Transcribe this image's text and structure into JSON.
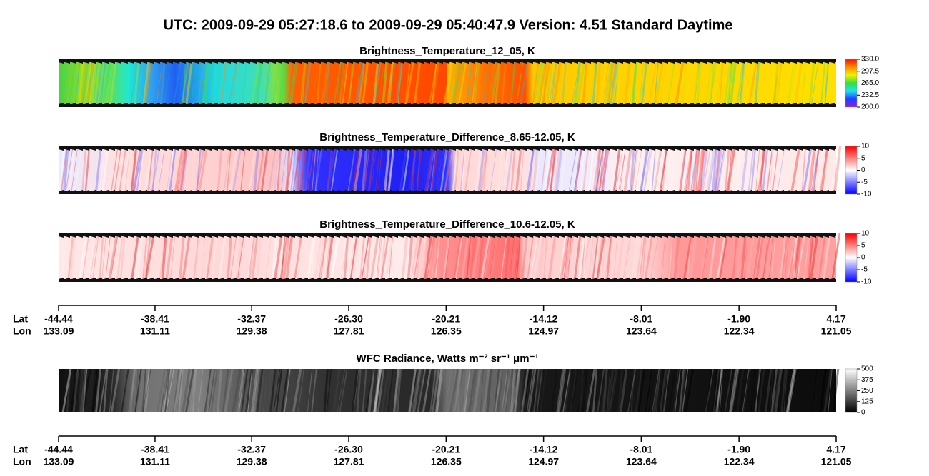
{
  "title": "UTC:  2009-09-29   05:27:18.6  to  2009-09-29   05:40:47.9    Version: 4.51  Standard Daytime",
  "chart_data": [
    {
      "type": "heatmap",
      "title": "Brightness_Temperature_12_05, K",
      "clim": [
        200,
        330
      ],
      "cticks": [
        {
          "value": 330,
          "label": "330.0"
        },
        {
          "value": 297.5,
          "label": "297.5"
        },
        {
          "value": 265,
          "label": "265.0"
        },
        {
          "value": 232.5,
          "label": "232.5"
        },
        {
          "value": 200,
          "label": "200.0"
        }
      ],
      "colors": [
        "#8a20e0",
        "#2040ff",
        "#20e0f0",
        "#30e040",
        "#f0f000",
        "#ff9000",
        "#ff1000"
      ]
    },
    {
      "type": "heatmap",
      "title": "Brightness_Temperature_Difference_8.65-12.05, K",
      "clim": [
        -10,
        10
      ],
      "cticks": [
        10,
        5,
        0,
        -5,
        -10
      ],
      "colors": [
        "#0000ff",
        "#ffffff",
        "#ff0000"
      ]
    },
    {
      "type": "heatmap",
      "title": "Brightness_Temperature_Difference_10.6-12.05, K",
      "clim": [
        -10,
        10
      ],
      "cticks": [
        10,
        5,
        0,
        -5,
        -10
      ],
      "colors": [
        "#0000ff",
        "#ffffff",
        "#ff0000"
      ]
    },
    {
      "type": "heatmap",
      "title": "WFC Radiance, Watts m⁻² sr⁻¹ μm⁻¹",
      "clim": [
        0,
        500
      ],
      "cticks": [
        500,
        375,
        250,
        125,
        0
      ],
      "colors": [
        "#000000",
        "#ffffff"
      ]
    }
  ],
  "axis": {
    "labels": [
      "Lat",
      "Lon"
    ],
    "xlim": [
      -44.44,
      4.17
    ],
    "lat": [
      -44.44,
      -38.41,
      -32.37,
      {
        "value": -26.3,
        "label": "-26.30"
      },
      -20.21,
      -14.12,
      -8.01,
      {
        "value": -1.9,
        "label": "-1.90"
      },
      4.17
    ],
    "lon": [
      133.09,
      131.11,
      129.38,
      127.81,
      126.35,
      124.97,
      123.64,
      122.34,
      121.05
    ]
  }
}
